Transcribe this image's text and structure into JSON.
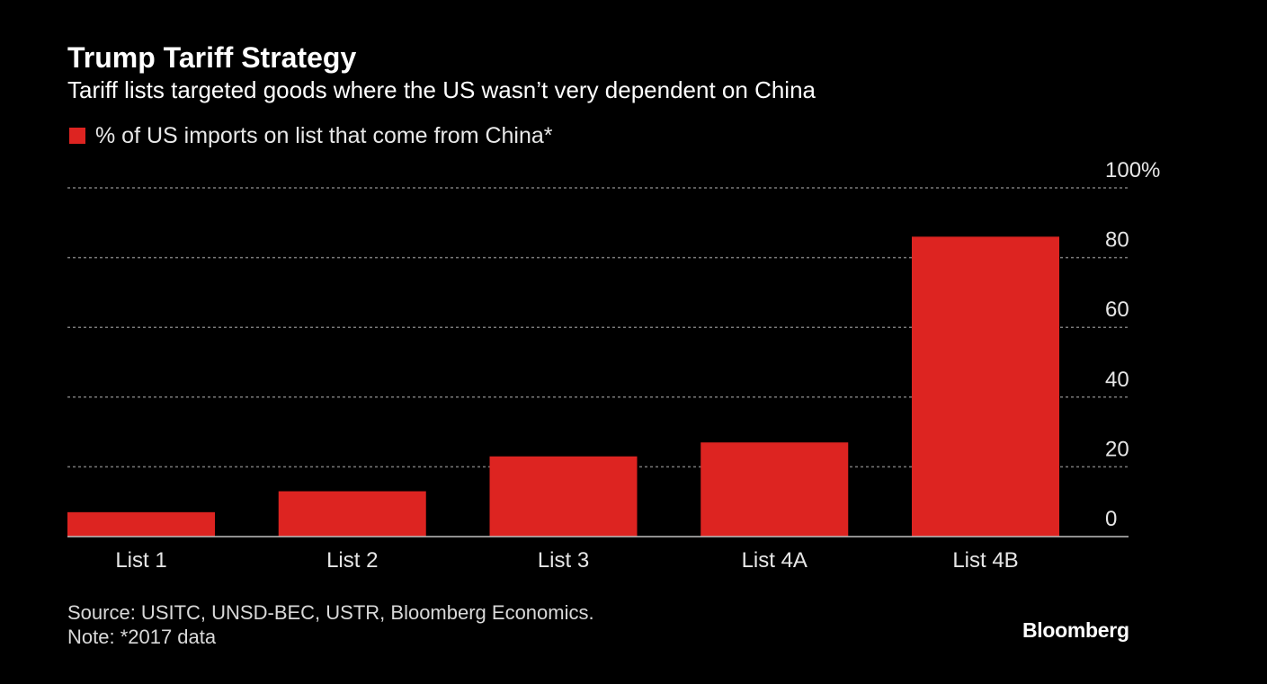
{
  "header": {
    "title": "Trump Tariff Strategy",
    "subtitle": "Tariff lists targeted goods where the US wasn’t very dependent on China"
  },
  "footer": {
    "source": "Source: USITC, UNSD-BEC, USTR, Bloomberg Economics.",
    "note": "Note: *2017 data",
    "brand": "Bloomberg"
  },
  "chart_data": {
    "type": "bar",
    "title": "Trump Tariff Strategy",
    "subtitle": "Tariff lists targeted goods where the US wasn’t very dependent on China",
    "categories": [
      "List 1",
      "List 2",
      "List 3",
      "List 4A",
      "List 4B"
    ],
    "series": [
      {
        "name": "% of US imports on list that come from China*",
        "values": [
          7,
          13,
          23,
          27,
          86
        ],
        "color": "#dd2421"
      }
    ],
    "xlabel": "",
    "ylabel": "",
    "ylim": [
      0,
      100
    ],
    "yticks": [
      {
        "value": 0,
        "label": "0"
      },
      {
        "value": 20,
        "label": "20"
      },
      {
        "value": 40,
        "label": "40"
      },
      {
        "value": 60,
        "label": "60"
      },
      {
        "value": 80,
        "label": "80"
      },
      {
        "value": 100,
        "label": "100%"
      }
    ],
    "y_axis_side": "right",
    "grid": true,
    "legend_position": "top-left"
  },
  "colors": {
    "background": "#000000",
    "bar": "#dd2421",
    "grid": "#7a7a7a",
    "axis": "#bfbfbf",
    "tick_text": "#e6e6e6"
  }
}
